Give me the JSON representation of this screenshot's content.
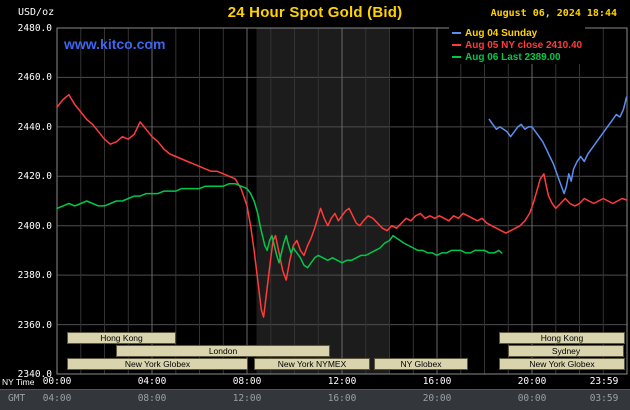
{
  "header": {
    "units_label": "USD/oz",
    "title": "24 Hour Spot Gold (Bid)",
    "datetime": "August 06, 2024 18:44"
  },
  "watermark": {
    "text": "www.kitco.com"
  },
  "legend": {
    "items": [
      {
        "label": "Aug 04 Sunday",
        "line_color": "#5b8ff0",
        "text_color": "#ffd200"
      },
      {
        "label": "Aug 05 NY close 2410.40",
        "line_color": "#ff3b3b",
        "text_color": "#ff3b3b"
      },
      {
        "label": "Aug 06 Last 2389.00",
        "line_color": "#00c84b",
        "text_color": "#00c84b"
      }
    ]
  },
  "axes": {
    "ny_time_label": "NY Time",
    "gmt_label": "GMT",
    "y_ticks": [
      {
        "value": 2480,
        "label": "2480.0"
      },
      {
        "value": 2460,
        "label": "2460.0"
      },
      {
        "value": 2440,
        "label": "2440.0"
      },
      {
        "value": 2420,
        "label": "2420.0"
      },
      {
        "value": 2400,
        "label": "2400.0"
      },
      {
        "value": 2380,
        "label": "2380.0"
      },
      {
        "value": 2360,
        "label": "2360.0"
      },
      {
        "value": 2340,
        "label": "2340.0"
      }
    ],
    "x_ticks": [
      {
        "hour": 0,
        "ny": "00:00",
        "gmt": "04:00"
      },
      {
        "hour": 4,
        "ny": "04:00",
        "gmt": "08:00"
      },
      {
        "hour": 8,
        "ny": "08:00",
        "gmt": "12:00"
      },
      {
        "hour": 12,
        "ny": "12:00",
        "gmt": "16:00"
      },
      {
        "hour": 16,
        "ny": "16:00",
        "gmt": "20:00"
      },
      {
        "hour": 20,
        "ny": "20:00",
        "gmt": "00:00"
      },
      {
        "hour": 23.983,
        "ny": "23:59",
        "gmt": "03:59"
      }
    ]
  },
  "sessions": {
    "bar_bg": "#d9d4ae",
    "bar_text": "#000000",
    "bars": [
      {
        "row": 0,
        "label": "Hong Kong",
        "h_start": 0.4,
        "h_end": 5.0
      },
      {
        "row": 0,
        "label": "Hong Kong",
        "h_start": 18.6,
        "h_end": 23.9
      },
      {
        "row": 1,
        "label": "London",
        "h_start": 2.5,
        "h_end": 11.5
      },
      {
        "row": 1,
        "label": "Sydney",
        "h_start": 19.0,
        "h_end": 23.9
      },
      {
        "row": 2,
        "label": "New York Globex",
        "h_start": 0.4,
        "h_end": 8.0
      },
      {
        "row": 2,
        "label": "New York NYMEX",
        "h_start": 8.3,
        "h_end": 13.2
      },
      {
        "row": 2,
        "label": "NY Globex",
        "h_start": 13.35,
        "h_end": 17.3
      },
      {
        "row": 2,
        "label": "New York Globex",
        "h_start": 18.6,
        "h_end": 23.9
      }
    ]
  },
  "chart_data": {
    "type": "line",
    "title": "24 Hour Spot Gold (Bid)",
    "ylabel": "USD/oz",
    "xlabel": "NY Time (hours)",
    "x_range": [
      0,
      24
    ],
    "y_range": [
      2340,
      2480
    ],
    "grid": true,
    "legend_position": "top-right",
    "highlight_band": {
      "h_start": 8.4,
      "h_end": 14,
      "color": "#1c1c1c"
    },
    "series": [
      {
        "name": "aug-04-sunday",
        "legend": "Aug 04 Sunday",
        "color": "#5b8ff0",
        "points": [
          [
            18.2,
            2443
          ],
          [
            18.35,
            2441
          ],
          [
            18.5,
            2439
          ],
          [
            18.65,
            2440
          ],
          [
            18.8,
            2439
          ],
          [
            18.95,
            2438
          ],
          [
            19.1,
            2436
          ],
          [
            19.25,
            2438
          ],
          [
            19.4,
            2440
          ],
          [
            19.55,
            2441
          ],
          [
            19.7,
            2439
          ],
          [
            19.85,
            2440
          ],
          [
            20,
            2440
          ],
          [
            20.15,
            2438
          ],
          [
            20.3,
            2436
          ],
          [
            20.45,
            2434
          ],
          [
            20.6,
            2431
          ],
          [
            20.75,
            2428
          ],
          [
            20.9,
            2425
          ],
          [
            21.05,
            2421
          ],
          [
            21.2,
            2417
          ],
          [
            21.35,
            2413
          ],
          [
            21.45,
            2416
          ],
          [
            21.55,
            2421
          ],
          [
            21.65,
            2418
          ],
          [
            21.75,
            2423
          ],
          [
            21.9,
            2426
          ],
          [
            22.05,
            2428
          ],
          [
            22.2,
            2426
          ],
          [
            22.35,
            2429
          ],
          [
            22.5,
            2431
          ],
          [
            22.65,
            2433
          ],
          [
            22.8,
            2435
          ],
          [
            22.95,
            2437
          ],
          [
            23.1,
            2439
          ],
          [
            23.25,
            2441
          ],
          [
            23.4,
            2443
          ],
          [
            23.55,
            2445
          ],
          [
            23.7,
            2444
          ],
          [
            23.85,
            2447
          ],
          [
            23.98,
            2452
          ]
        ]
      },
      {
        "name": "aug-05",
        "legend": "Aug 05 NY close 2410.40",
        "color": "#ff3b3b",
        "points": [
          [
            0,
            2448
          ],
          [
            0.25,
            2451
          ],
          [
            0.5,
            2453
          ],
          [
            0.75,
            2449
          ],
          [
            1,
            2446
          ],
          [
            1.25,
            2443
          ],
          [
            1.5,
            2441
          ],
          [
            1.75,
            2438
          ],
          [
            2,
            2435
          ],
          [
            2.25,
            2433
          ],
          [
            2.5,
            2434
          ],
          [
            2.75,
            2436
          ],
          [
            3,
            2435
          ],
          [
            3.25,
            2437
          ],
          [
            3.5,
            2442
          ],
          [
            3.75,
            2439
          ],
          [
            4,
            2436
          ],
          [
            4.25,
            2434
          ],
          [
            4.5,
            2431
          ],
          [
            4.75,
            2429
          ],
          [
            5,
            2428
          ],
          [
            5.25,
            2427
          ],
          [
            5.5,
            2426
          ],
          [
            5.75,
            2425
          ],
          [
            6,
            2424
          ],
          [
            6.25,
            2423
          ],
          [
            6.5,
            2422
          ],
          [
            6.75,
            2422
          ],
          [
            7,
            2421
          ],
          [
            7.25,
            2420
          ],
          [
            7.5,
            2419
          ],
          [
            7.75,
            2415
          ],
          [
            8,
            2408
          ],
          [
            8.15,
            2400
          ],
          [
            8.3,
            2390
          ],
          [
            8.45,
            2378
          ],
          [
            8.6,
            2366
          ],
          [
            8.7,
            2363
          ],
          [
            8.8,
            2371
          ],
          [
            8.9,
            2379
          ],
          [
            9,
            2387
          ],
          [
            9.1,
            2394
          ],
          [
            9.2,
            2396
          ],
          [
            9.35,
            2389
          ],
          [
            9.5,
            2382
          ],
          [
            9.65,
            2378
          ],
          [
            9.8,
            2386
          ],
          [
            9.95,
            2392
          ],
          [
            10.1,
            2394
          ],
          [
            10.25,
            2390
          ],
          [
            10.4,
            2388
          ],
          [
            10.55,
            2392
          ],
          [
            10.7,
            2395
          ],
          [
            10.85,
            2399
          ],
          [
            11,
            2404
          ],
          [
            11.1,
            2407
          ],
          [
            11.25,
            2403
          ],
          [
            11.4,
            2400
          ],
          [
            11.55,
            2403
          ],
          [
            11.7,
            2405
          ],
          [
            11.85,
            2402
          ],
          [
            12,
            2404
          ],
          [
            12.15,
            2406
          ],
          [
            12.3,
            2407
          ],
          [
            12.45,
            2404
          ],
          [
            12.6,
            2401
          ],
          [
            12.75,
            2400
          ],
          [
            12.9,
            2402
          ],
          [
            13.1,
            2404
          ],
          [
            13.3,
            2403
          ],
          [
            13.5,
            2401
          ],
          [
            13.7,
            2399
          ],
          [
            13.9,
            2398
          ],
          [
            14.1,
            2400
          ],
          [
            14.3,
            2399
          ],
          [
            14.5,
            2401
          ],
          [
            14.7,
            2403
          ],
          [
            14.9,
            2402
          ],
          [
            15.1,
            2404
          ],
          [
            15.3,
            2405
          ],
          [
            15.5,
            2403
          ],
          [
            15.7,
            2404
          ],
          [
            15.9,
            2403
          ],
          [
            16.1,
            2404
          ],
          [
            16.3,
            2403
          ],
          [
            16.5,
            2402
          ],
          [
            16.7,
            2404
          ],
          [
            16.9,
            2403
          ],
          [
            17.1,
            2405
          ],
          [
            17.3,
            2404
          ],
          [
            17.5,
            2403
          ],
          [
            17.7,
            2402
          ],
          [
            17.9,
            2403
          ],
          [
            18.1,
            2401
          ],
          [
            18.3,
            2400
          ],
          [
            18.5,
            2399
          ],
          [
            18.7,
            2398
          ],
          [
            18.9,
            2397
          ],
          [
            19.1,
            2398
          ],
          [
            19.3,
            2399
          ],
          [
            19.5,
            2400
          ],
          [
            19.7,
            2402
          ],
          [
            19.9,
            2405
          ],
          [
            20.05,
            2409
          ],
          [
            20.2,
            2414
          ],
          [
            20.35,
            2419
          ],
          [
            20.5,
            2421
          ],
          [
            20.6,
            2416
          ],
          [
            20.7,
            2412
          ],
          [
            20.85,
            2409
          ],
          [
            21,
            2407
          ],
          [
            21.2,
            2409
          ],
          [
            21.4,
            2411
          ],
          [
            21.6,
            2409
          ],
          [
            21.8,
            2408
          ],
          [
            22,
            2409
          ],
          [
            22.2,
            2411
          ],
          [
            22.4,
            2410
          ],
          [
            22.6,
            2409
          ],
          [
            22.8,
            2410
          ],
          [
            23,
            2411
          ],
          [
            23.2,
            2410
          ],
          [
            23.4,
            2409
          ],
          [
            23.6,
            2410
          ],
          [
            23.8,
            2411
          ],
          [
            23.98,
            2410.4
          ]
        ]
      },
      {
        "name": "aug-06",
        "legend": "Aug 06 Last 2389.00",
        "color": "#00c84b",
        "points": [
          [
            0,
            2407
          ],
          [
            0.25,
            2408
          ],
          [
            0.5,
            2409
          ],
          [
            0.75,
            2408
          ],
          [
            1,
            2409
          ],
          [
            1.25,
            2410
          ],
          [
            1.5,
            2409
          ],
          [
            1.75,
            2408
          ],
          [
            2,
            2408
          ],
          [
            2.25,
            2409
          ],
          [
            2.5,
            2410
          ],
          [
            2.75,
            2410
          ],
          [
            3,
            2411
          ],
          [
            3.25,
            2412
          ],
          [
            3.5,
            2412
          ],
          [
            3.75,
            2413
          ],
          [
            4,
            2413
          ],
          [
            4.25,
            2413
          ],
          [
            4.5,
            2414
          ],
          [
            4.75,
            2414
          ],
          [
            5,
            2414
          ],
          [
            5.25,
            2415
          ],
          [
            5.5,
            2415
          ],
          [
            5.75,
            2415
          ],
          [
            6,
            2415
          ],
          [
            6.25,
            2416
          ],
          [
            6.5,
            2416
          ],
          [
            6.75,
            2416
          ],
          [
            7,
            2416
          ],
          [
            7.25,
            2417
          ],
          [
            7.5,
            2417
          ],
          [
            7.75,
            2416
          ],
          [
            8,
            2415
          ],
          [
            8.15,
            2413
          ],
          [
            8.3,
            2410
          ],
          [
            8.45,
            2405
          ],
          [
            8.55,
            2400
          ],
          [
            8.65,
            2396
          ],
          [
            8.75,
            2392
          ],
          [
            8.85,
            2390
          ],
          [
            8.95,
            2394
          ],
          [
            9.05,
            2396
          ],
          [
            9.15,
            2392
          ],
          [
            9.25,
            2388
          ],
          [
            9.35,
            2385
          ],
          [
            9.45,
            2389
          ],
          [
            9.55,
            2393
          ],
          [
            9.65,
            2396
          ],
          [
            9.75,
            2392
          ],
          [
            9.85,
            2389
          ],
          [
            9.95,
            2391
          ],
          [
            10.1,
            2389
          ],
          [
            10.25,
            2387
          ],
          [
            10.4,
            2384
          ],
          [
            10.55,
            2383
          ],
          [
            10.7,
            2385
          ],
          [
            10.85,
            2387
          ],
          [
            11,
            2388
          ],
          [
            11.2,
            2387
          ],
          [
            11.4,
            2386
          ],
          [
            11.6,
            2387
          ],
          [
            11.8,
            2386
          ],
          [
            12,
            2385
          ],
          [
            12.2,
            2386
          ],
          [
            12.4,
            2386
          ],
          [
            12.6,
            2387
          ],
          [
            12.8,
            2388
          ],
          [
            13,
            2388
          ],
          [
            13.2,
            2389
          ],
          [
            13.4,
            2390
          ],
          [
            13.6,
            2391
          ],
          [
            13.8,
            2393
          ],
          [
            14,
            2394
          ],
          [
            14.15,
            2396
          ],
          [
            14.3,
            2395
          ],
          [
            14.45,
            2394
          ],
          [
            14.6,
            2393
          ],
          [
            14.8,
            2392
          ],
          [
            15,
            2391
          ],
          [
            15.2,
            2390
          ],
          [
            15.4,
            2390
          ],
          [
            15.6,
            2389
          ],
          [
            15.8,
            2389
          ],
          [
            16,
            2388
          ],
          [
            16.2,
            2389
          ],
          [
            16.4,
            2389
          ],
          [
            16.6,
            2390
          ],
          [
            16.8,
            2390
          ],
          [
            17,
            2390
          ],
          [
            17.2,
            2389
          ],
          [
            17.4,
            2389
          ],
          [
            17.6,
            2390
          ],
          [
            17.8,
            2390
          ],
          [
            18,
            2390
          ],
          [
            18.2,
            2389
          ],
          [
            18.4,
            2389
          ],
          [
            18.6,
            2390
          ],
          [
            18.73,
            2389
          ]
        ]
      }
    ]
  }
}
